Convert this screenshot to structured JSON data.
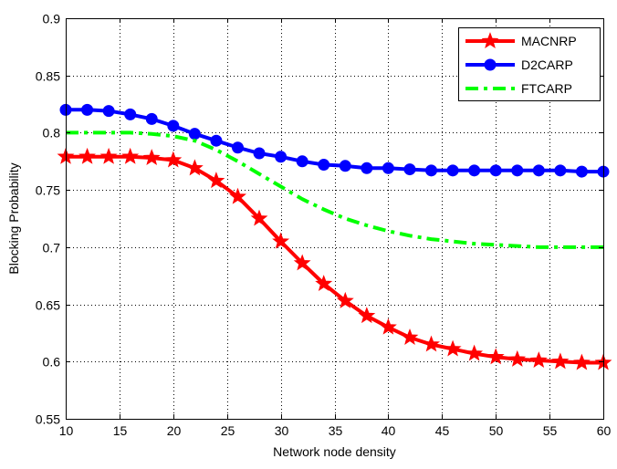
{
  "chart_data": {
    "type": "line",
    "title": "",
    "xlabel": "Network node density",
    "ylabel": "Blocking Probability",
    "xlim": [
      10,
      60
    ],
    "ylim": [
      0.55,
      0.9
    ],
    "xticks": [
      10,
      15,
      20,
      25,
      30,
      35,
      40,
      45,
      50,
      55,
      60
    ],
    "yticks": [
      0.55,
      0.6,
      0.65,
      0.7,
      0.75,
      0.8,
      0.85,
      0.9
    ],
    "xtick_labels": [
      "10",
      "15",
      "20",
      "25",
      "30",
      "35",
      "40",
      "45",
      "50",
      "55",
      "60"
    ],
    "ytick_labels": [
      "0.55",
      "0.6",
      "0.65",
      "0.7",
      "0.75",
      "0.8",
      "0.85",
      "0.9"
    ],
    "grid": true,
    "legend_position": "top-right",
    "series": [
      {
        "name": "MACNRP",
        "color": "#ff0000",
        "marker": "star",
        "line_style": "solid",
        "x": [
          10,
          12,
          14,
          16,
          18,
          20,
          22,
          24,
          26,
          28,
          30,
          32,
          34,
          36,
          38,
          40,
          42,
          44,
          46,
          48,
          50,
          52,
          54,
          56,
          58,
          60
        ],
        "y": [
          0.779,
          0.779,
          0.779,
          0.779,
          0.778,
          0.776,
          0.769,
          0.758,
          0.744,
          0.725,
          0.705,
          0.686,
          0.668,
          0.653,
          0.64,
          0.63,
          0.621,
          0.615,
          0.611,
          0.607,
          0.604,
          0.602,
          0.601,
          0.6,
          0.599,
          0.599
        ]
      },
      {
        "name": "D2CARP",
        "color": "#0000ff",
        "marker": "circle",
        "line_style": "solid",
        "x": [
          10,
          12,
          14,
          16,
          18,
          20,
          22,
          24,
          26,
          28,
          30,
          32,
          34,
          36,
          38,
          40,
          42,
          44,
          46,
          48,
          50,
          52,
          54,
          56,
          58,
          60
        ],
        "y": [
          0.82,
          0.82,
          0.819,
          0.816,
          0.812,
          0.806,
          0.799,
          0.793,
          0.787,
          0.782,
          0.779,
          0.775,
          0.772,
          0.771,
          0.769,
          0.769,
          0.768,
          0.767,
          0.767,
          0.767,
          0.767,
          0.767,
          0.767,
          0.767,
          0.766,
          0.766
        ]
      },
      {
        "name": "FTCARP",
        "color": "#00ff00",
        "marker": "none",
        "line_style": "dash-dot",
        "x": [
          10,
          12,
          14,
          16,
          18,
          20,
          22,
          24,
          26,
          28,
          30,
          32,
          34,
          36,
          38,
          40,
          42,
          44,
          46,
          48,
          50,
          52,
          54,
          56,
          58,
          60
        ],
        "y": [
          0.8,
          0.8,
          0.8,
          0.8,
          0.799,
          0.797,
          0.793,
          0.785,
          0.775,
          0.764,
          0.753,
          0.742,
          0.733,
          0.725,
          0.719,
          0.714,
          0.71,
          0.707,
          0.705,
          0.703,
          0.702,
          0.701,
          0.7,
          0.7,
          0.7,
          0.7
        ]
      }
    ]
  }
}
